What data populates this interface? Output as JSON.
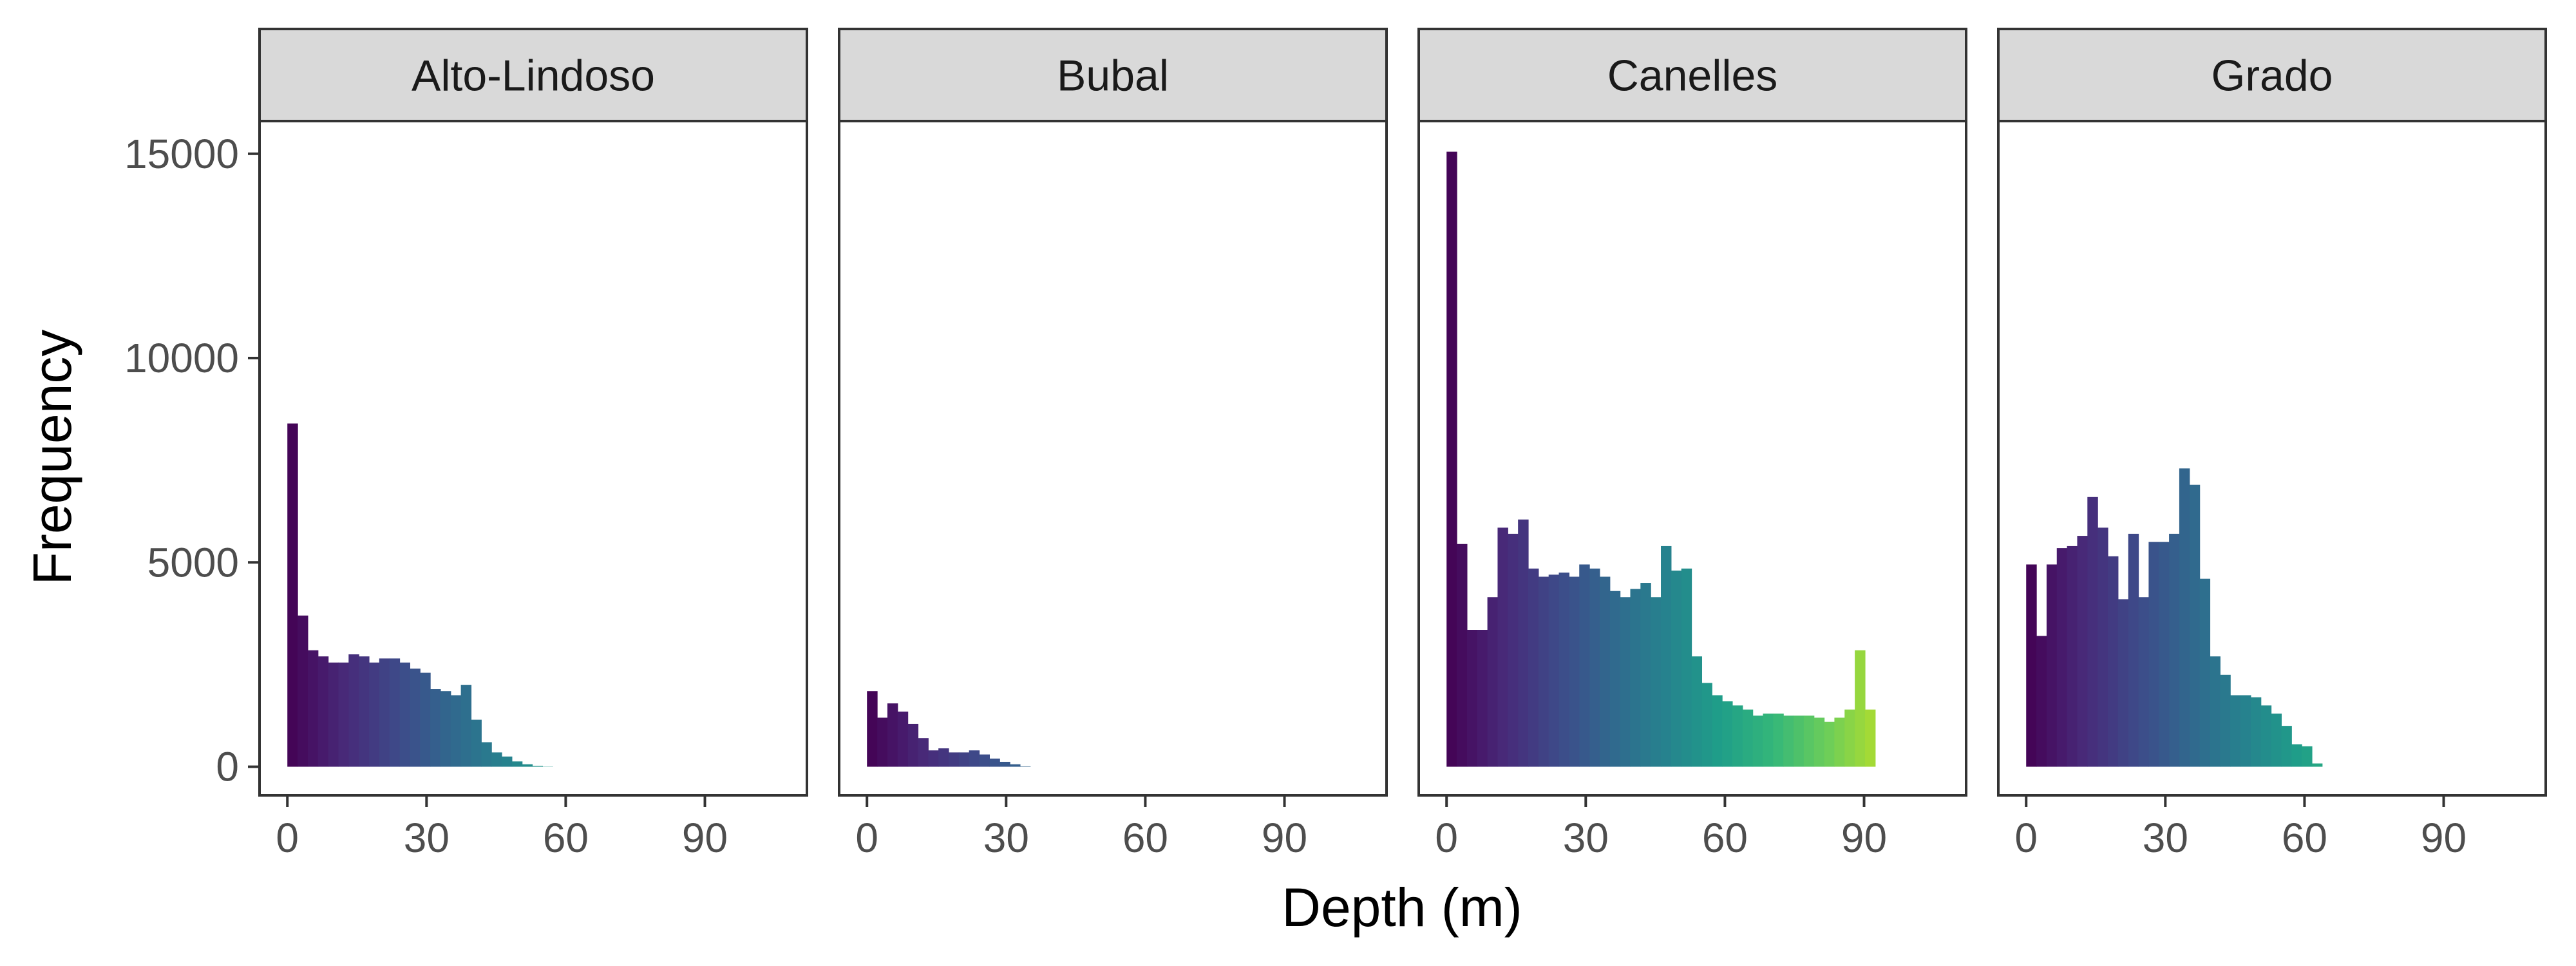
{
  "chart_data": {
    "type": "bar",
    "xlabel": "Depth (m)",
    "ylabel": "Frequency",
    "xlim": [
      -6,
      112
    ],
    "ylim": [
      -700,
      15800
    ],
    "x_ticks": [
      0,
      30,
      60,
      90
    ],
    "y_ticks": [
      0,
      5000,
      10000,
      15000
    ],
    "bin_width": 2.2,
    "grid": false,
    "legend": "none",
    "colors": {
      "strip_bg": "#d9d9d9",
      "panel_border": "#333333",
      "tick_text": "#4d4d4d",
      "viridis_stops": [
        "#440154",
        "#482878",
        "#3e4989",
        "#31688e",
        "#26828e",
        "#1f9e89",
        "#35b779",
        "#6ece58",
        "#b5de2b",
        "#fde725"
      ]
    },
    "panels": [
      {
        "name": "Alto-Lindoso",
        "values": [
          8400,
          3700,
          2850,
          2700,
          2550,
          2550,
          2750,
          2700,
          2550,
          2650,
          2650,
          2550,
          2400,
          2300,
          1900,
          1850,
          1750,
          2000,
          1150,
          600,
          350,
          250,
          130,
          60,
          20,
          5
        ]
      },
      {
        "name": "Bubal",
        "values": [
          1850,
          1200,
          1550,
          1350,
          1050,
          700,
          400,
          450,
          350,
          350,
          400,
          300,
          200,
          120,
          60,
          10
        ]
      },
      {
        "name": "Canelles",
        "values": [
          15050,
          5450,
          3350,
          3350,
          4150,
          5850,
          5700,
          6050,
          4850,
          4650,
          4700,
          4750,
          4650,
          4950,
          4850,
          4650,
          4300,
          4150,
          4350,
          4500,
          4150,
          5400,
          4800,
          4850,
          2700,
          2050,
          1750,
          1600,
          1500,
          1400,
          1250,
          1300,
          1300,
          1250,
          1250,
          1250,
          1200,
          1100,
          1200,
          1400,
          2850,
          1400
        ]
      },
      {
        "name": "Grado",
        "values": [
          4950,
          3200,
          4950,
          5350,
          5400,
          5650,
          6600,
          5850,
          5150,
          4100,
          5700,
          4150,
          5500,
          5500,
          5700,
          7300,
          6900,
          4600,
          2700,
          2250,
          1750,
          1750,
          1700,
          1500,
          1300,
          1000,
          550,
          500,
          80
        ]
      }
    ]
  }
}
